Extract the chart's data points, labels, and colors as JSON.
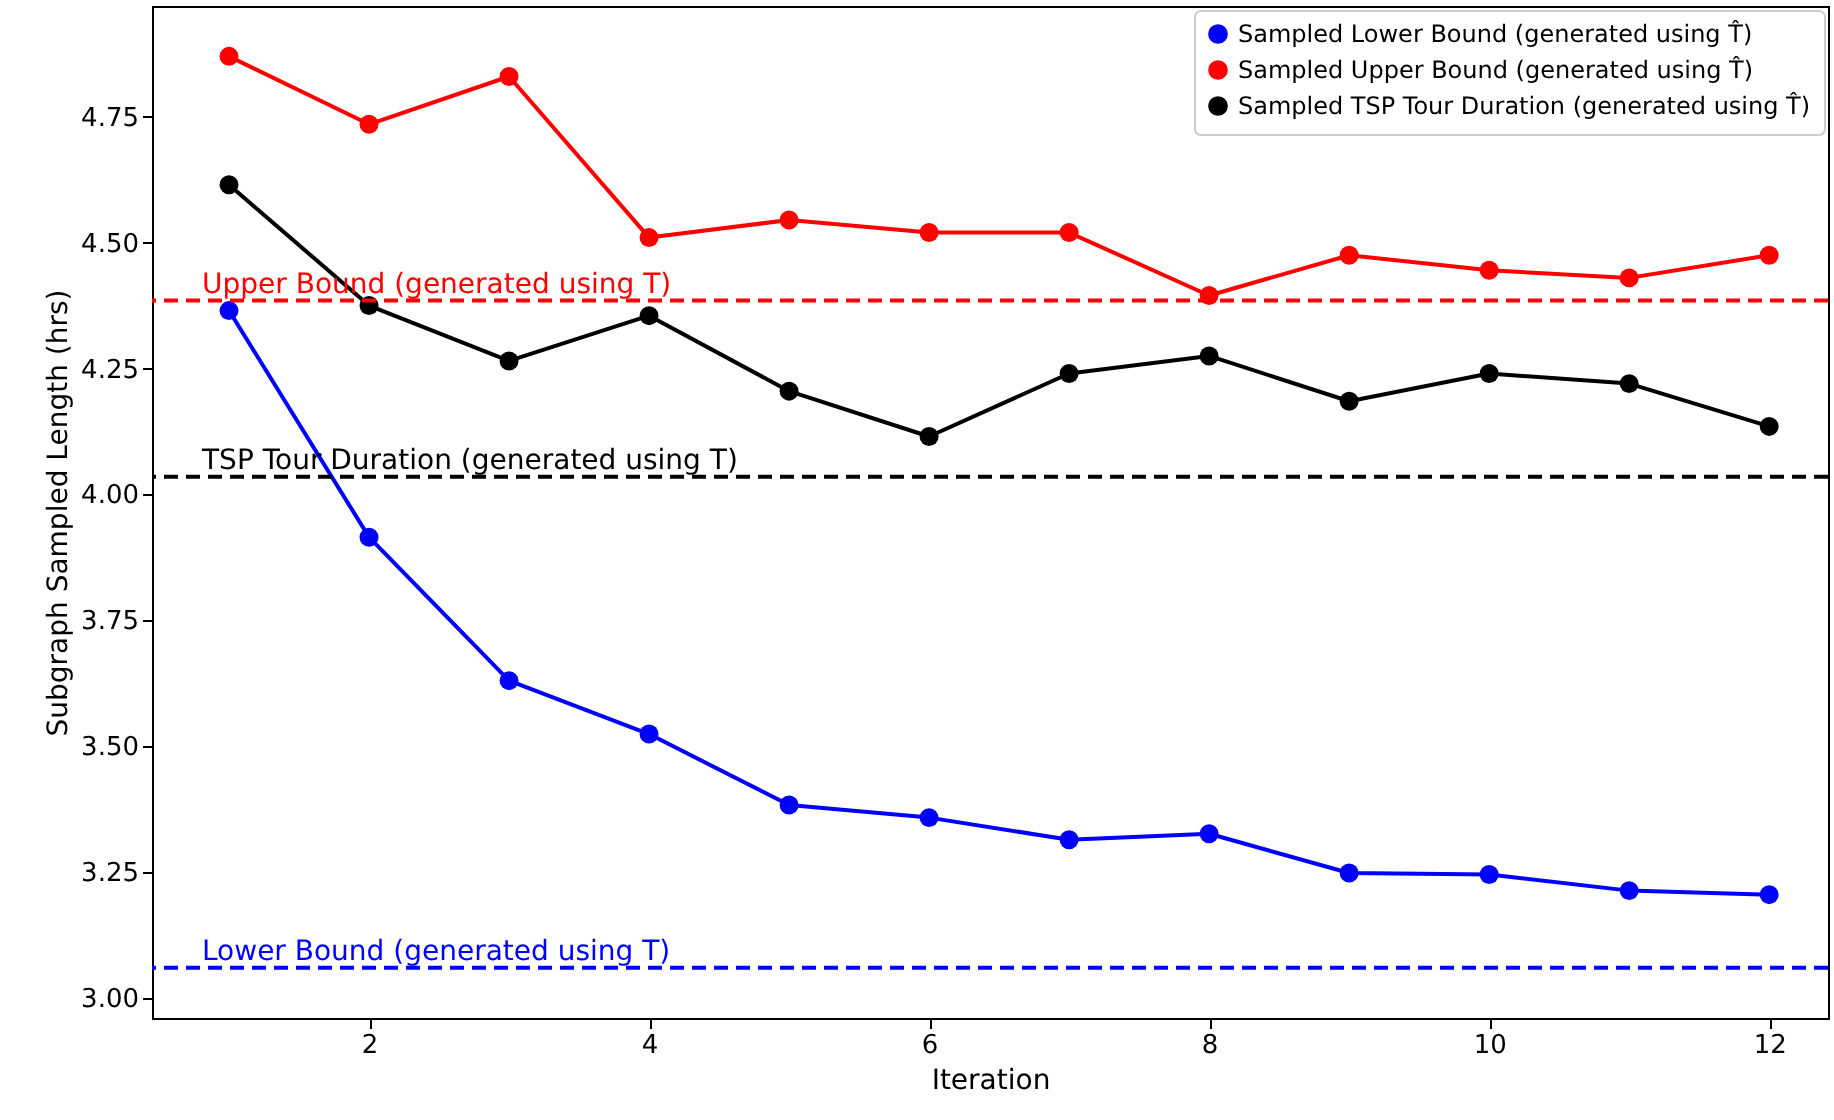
{
  "chart_data": {
    "type": "line",
    "xlabel": "Iteration",
    "ylabel": "Subgraph Sampled Length (hrs)",
    "x": [
      1,
      2,
      3,
      4,
      5,
      6,
      7,
      8,
      9,
      10,
      11,
      12
    ],
    "series": [
      {
        "name": "Sampled Lower Bound (generated using T̂)",
        "color": "#0000ff",
        "values": [
          4.365,
          3.915,
          3.63,
          3.524,
          3.383,
          3.358,
          3.314,
          3.326,
          3.248,
          3.245,
          3.213,
          3.205
        ]
      },
      {
        "name": "Sampled Upper Bound (generated using T̂)",
        "color": "#ff0000",
        "values": [
          4.87,
          4.735,
          4.83,
          4.51,
          4.545,
          4.52,
          4.52,
          4.395,
          4.475,
          4.445,
          4.43,
          4.475
        ]
      },
      {
        "name": "Sampled TSP Tour Duration (generated using T̂)",
        "color": "#000000",
        "values": [
          4.615,
          4.375,
          4.265,
          4.355,
          4.205,
          4.115,
          4.24,
          4.275,
          4.185,
          4.24,
          4.22,
          4.135
        ]
      }
    ],
    "ref_lines": [
      {
        "axis": "y",
        "value": 4.385,
        "label": "Upper Bound (generated using T)",
        "color": "#ff0000",
        "line_style": "dashed"
      },
      {
        "axis": "y",
        "value": 4.035,
        "label": "TSP Tour Duration (generated using T)",
        "color": "#000000",
        "line_style": "dashed"
      },
      {
        "axis": "y",
        "value": 3.06,
        "label": "Lower Bound (generated using T)",
        "color": "#0000ff",
        "line_style": "dashed"
      }
    ],
    "xlim": [
      0.45,
      12.42
    ],
    "ylim": [
      2.96,
      4.97
    ],
    "xticks": [
      2,
      4,
      6,
      8,
      10,
      12
    ],
    "yticks": [
      {
        "value": 3,
        "label": "3.00"
      },
      3.25,
      {
        "value": 3.5,
        "label": "3.50"
      },
      3.75,
      {
        "value": 4,
        "label": "4.00"
      },
      4.25,
      {
        "value": 4.5,
        "label": "4.50"
      },
      4.75
    ],
    "grid": false,
    "legend": "top right",
    "marker": "circle",
    "line_style": "solid"
  }
}
